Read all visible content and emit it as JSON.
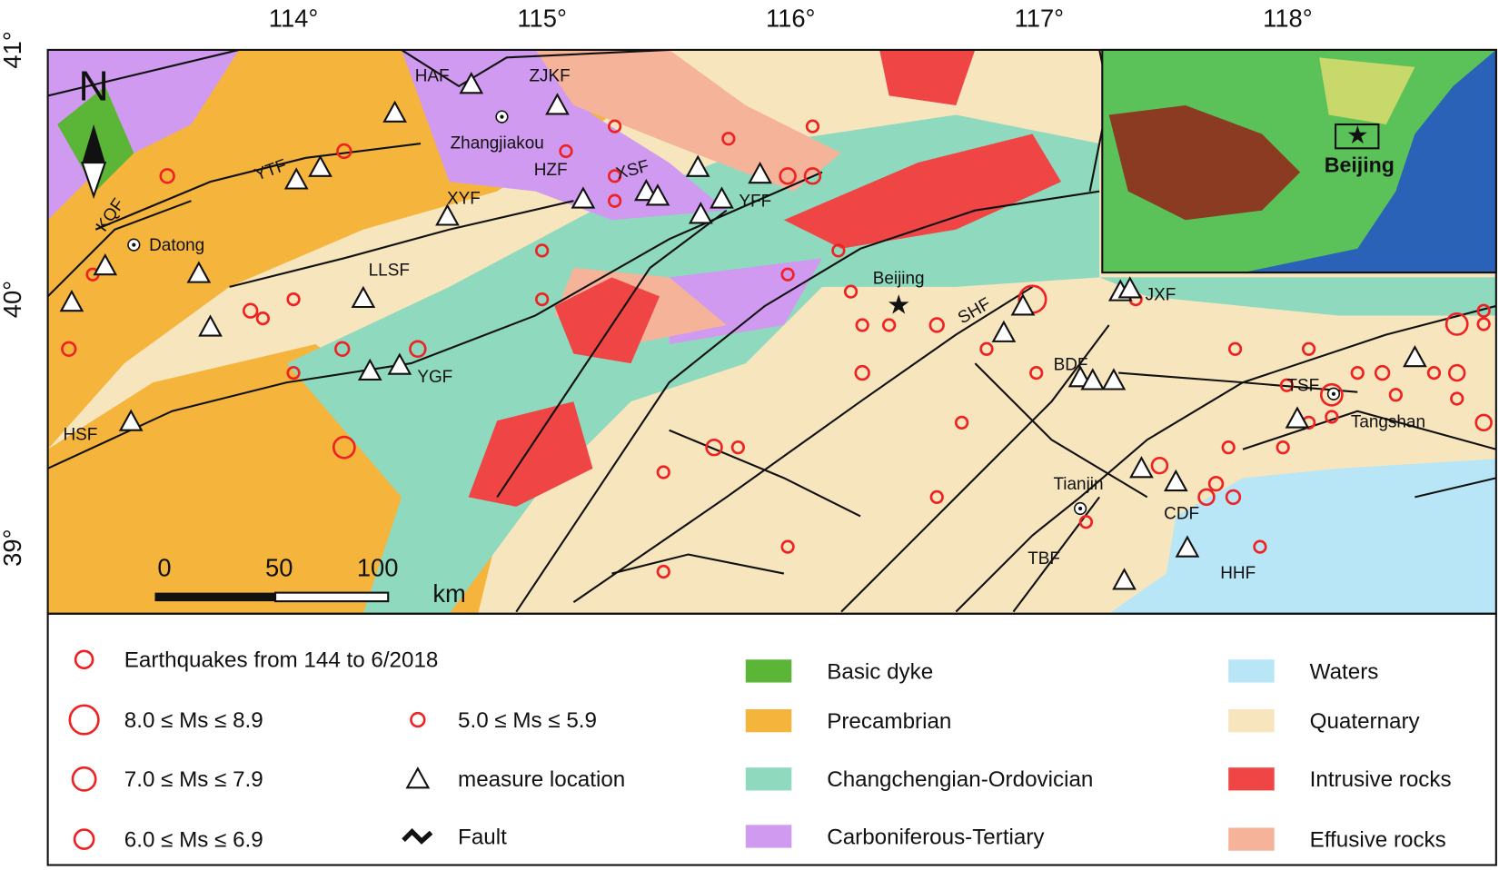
{
  "map": {
    "longitude_labels": [
      "114°",
      "115°",
      "116°",
      "117°",
      "118°"
    ],
    "latitude_labels": [
      "41°",
      "40°",
      "39°"
    ],
    "north": "N",
    "places": [
      "Zhangjiakou",
      "Datong",
      "Beijing",
      "Tianjin",
      "Tangshan"
    ],
    "faults": [
      "HAF",
      "ZJKF",
      "YTF",
      "HZF",
      "XSF",
      "KQF",
      "XYF",
      "YFF",
      "LLSF",
      "YGF",
      "SHF",
      "JXF",
      "BDF",
      "TSF",
      "CDF",
      "TBF",
      "HHF",
      "HSF"
    ],
    "scale_bar": {
      "ticks": [
        "0",
        "50",
        "100"
      ],
      "unit": "km"
    },
    "inset": {
      "label": "Beijing"
    }
  },
  "legend": {
    "symbols": [
      "Earthquakes from 144 to 6/2018",
      "8.0 ≤ Ms ≤ 8.9",
      "7.0 ≤ Ms ≤ 7.9",
      "6.0 ≤ Ms ≤ 6.9",
      "5.0 ≤ Ms ≤ 5.9",
      "measure location",
      "Fault"
    ],
    "lithology": [
      {
        "name": "Basic dyke",
        "color": "#5bb536"
      },
      {
        "name": "Precambrian",
        "color": "#f5b43c"
      },
      {
        "name": "Changchengian-Ordovician",
        "color": "#8fd9be"
      },
      {
        "name": "Carboniferous-Tertiary",
        "color": "#cf9af0"
      },
      {
        "name": "Waters",
        "color": "#b8e6f7"
      },
      {
        "name": "Quaternary",
        "color": "#f7e5bd"
      },
      {
        "name": "Intrusive rocks",
        "color": "#f04545"
      },
      {
        "name": "Effusive rocks",
        "color": "#f5b49a"
      }
    ]
  }
}
